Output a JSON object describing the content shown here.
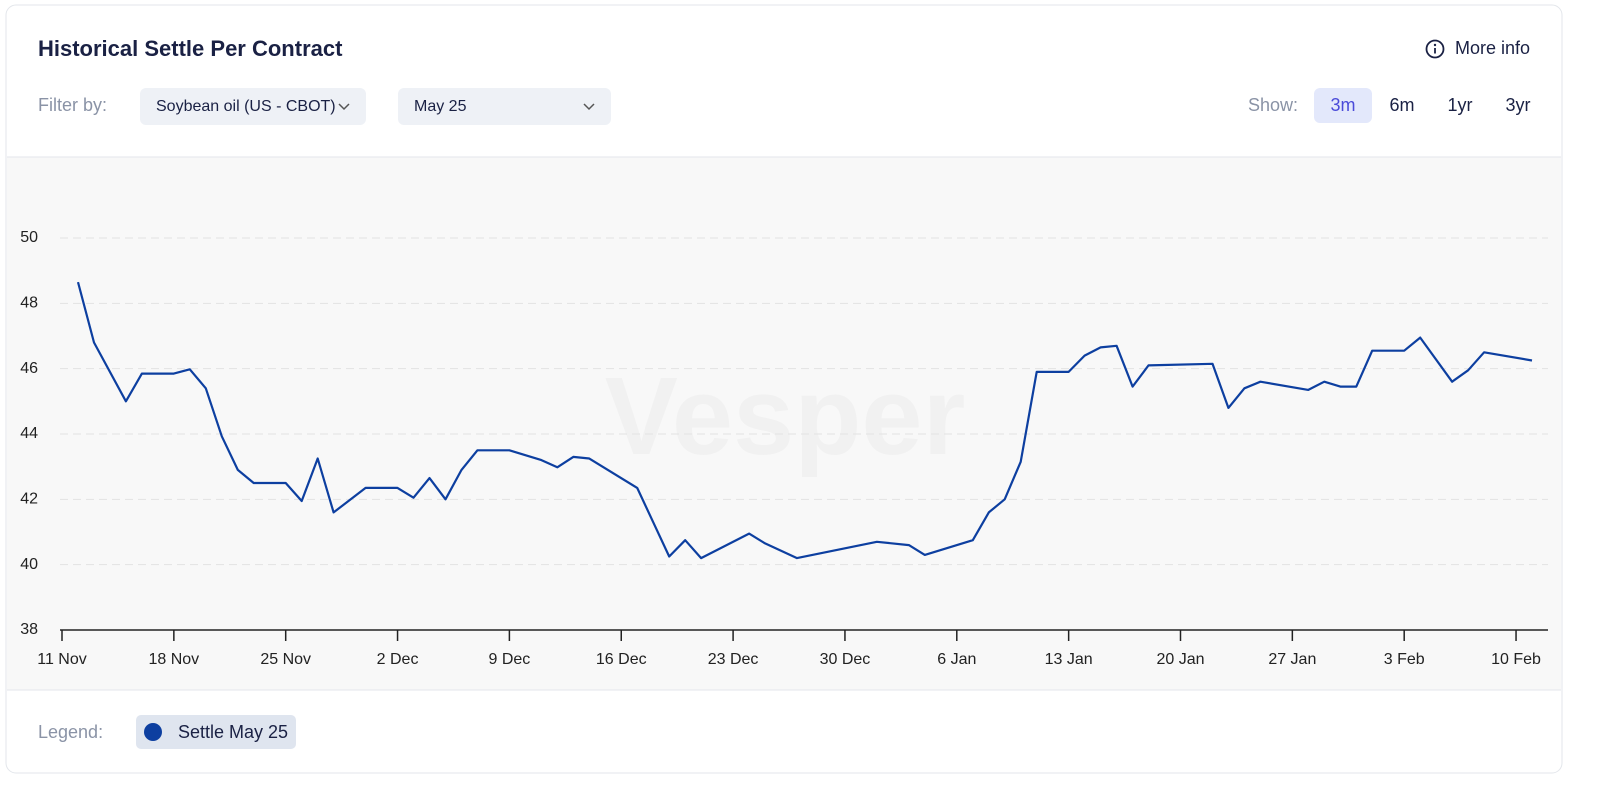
{
  "header": {
    "title": "Historical Settle Per Contract",
    "more_info": "More info"
  },
  "filters": {
    "label": "Filter by:",
    "options": [
      "Soybean oil (US - CBOT)",
      "May 25"
    ]
  },
  "show": {
    "label": "Show:",
    "options": [
      "3m",
      "6m",
      "1yr",
      "3yr"
    ]
  },
  "legend_label": "Legend:",
  "watermark": "Vesper",
  "chart_data": {
    "type": "line",
    "x": [
      "12 Nov",
      "13 Nov",
      "15 Nov",
      "16 Nov",
      "18 Nov",
      "19 Nov",
      "20 Nov",
      "21 Nov",
      "22 Nov",
      "23 Nov",
      "25 Nov",
      "26 Nov",
      "27 Nov",
      "28 Nov",
      "30 Nov",
      "2 Dec",
      "3 Dec",
      "4 Dec",
      "5 Dec",
      "6 Dec",
      "7 Dec",
      "9 Dec",
      "11 Dec",
      "12 Dec",
      "13 Dec",
      "14 Dec",
      "17 Dec",
      "18 Dec",
      "19 Dec",
      "20 Dec",
      "21 Dec",
      "24 Dec",
      "25 Dec",
      "27 Dec",
      "1 Jan",
      "3 Jan",
      "4 Jan",
      "7 Jan",
      "8 Jan",
      "9 Jan",
      "10 Jan",
      "11 Jan",
      "13 Jan",
      "14 Jan",
      "15 Jan",
      "16 Jan",
      "17 Jan",
      "18 Jan",
      "22 Jan",
      "23 Jan",
      "24 Jan",
      "25 Jan",
      "28 Jan",
      "29 Jan",
      "30 Jan",
      "31 Jan",
      "1 Feb",
      "3 Feb",
      "4 Feb",
      "6 Feb",
      "7 Feb",
      "8 Feb",
      "11 Feb"
    ],
    "series": [
      {
        "name": "Settle May 25",
        "color": "#0d3fa0",
        "values": [
          48.65,
          46.8,
          45.0,
          45.85,
          45.85,
          45.98,
          45.4,
          43.93,
          42.9,
          42.5,
          42.5,
          41.95,
          43.25,
          41.6,
          42.35,
          42.35,
          42.05,
          42.65,
          42.0,
          42.9,
          43.5,
          43.5,
          43.2,
          42.98,
          43.3,
          43.25,
          42.35,
          41.3,
          40.25,
          40.75,
          40.2,
          40.95,
          40.65,
          40.2,
          40.7,
          40.6,
          40.3,
          40.75,
          41.6,
          42.0,
          43.15,
          45.9,
          45.9,
          46.4,
          46.65,
          46.7,
          45.45,
          46.1,
          46.15,
          44.8,
          45.4,
          45.6,
          45.35,
          45.6,
          45.45,
          45.45,
          46.55,
          46.55,
          46.95,
          45.6,
          45.95,
          46.5,
          46.25
        ]
      }
    ],
    "xlim": [
      "11 Nov",
      "12 Feb"
    ],
    "xticks": [
      "11 Nov",
      "18 Nov",
      "25 Nov",
      "2 Dec",
      "9 Dec",
      "16 Dec",
      "23 Dec",
      "30 Dec",
      "6 Jan",
      "13 Jan",
      "20 Jan",
      "27 Jan",
      "3 Feb",
      "10 Feb"
    ],
    "ylim": [
      38,
      50
    ],
    "yticks": [
      38,
      40,
      42,
      44,
      46,
      48,
      50
    ],
    "grid": true
  }
}
